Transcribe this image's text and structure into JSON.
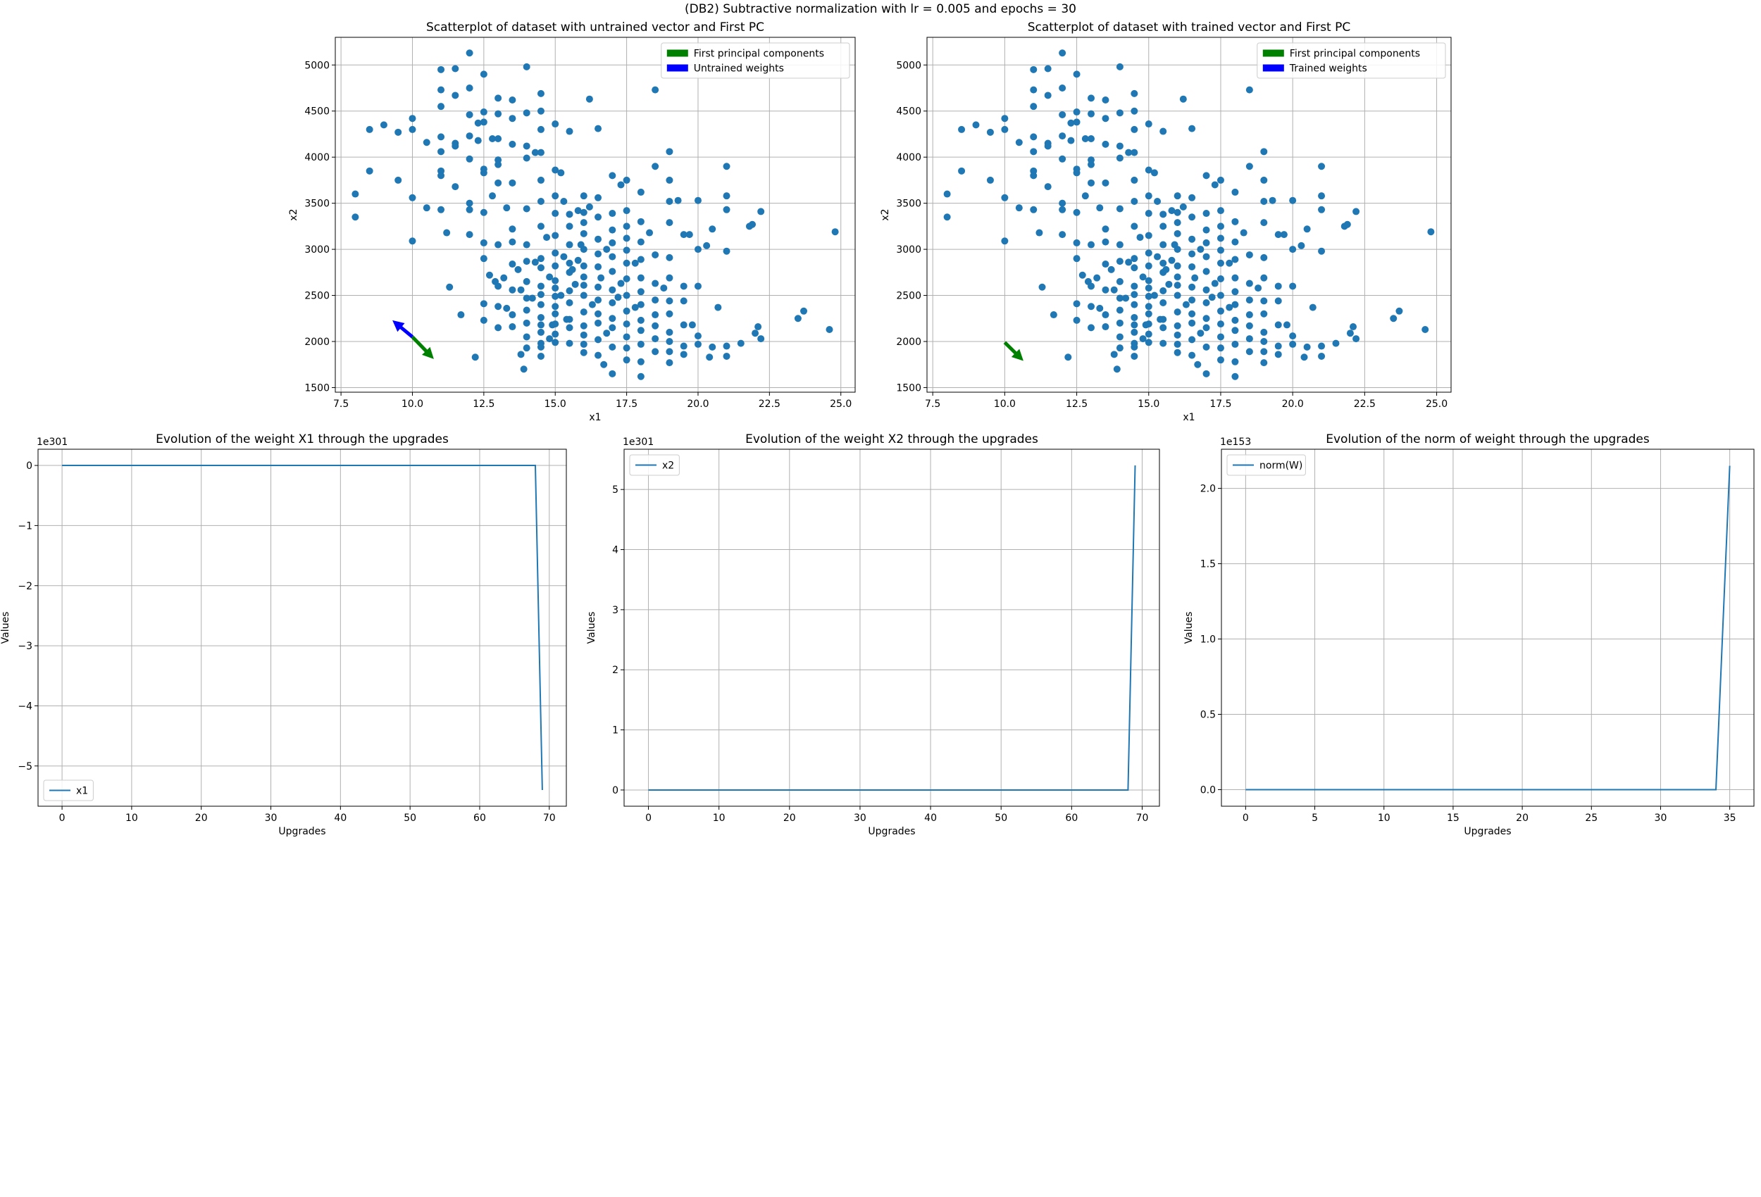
{
  "suptitle": "(DB2) Subtractive normalization with lr = 0.005 and epochs = 30",
  "colors": {
    "points": "#1f77b4",
    "line": "#1f77b4",
    "pc_arrow": "#008000",
    "weight_arrow": "#0000ff",
    "grid": "#b0b0b0"
  },
  "scatter_points": [
    [
      8.0,
      3350
    ],
    [
      8.0,
      3600
    ],
    [
      8.5,
      3850
    ],
    [
      8.5,
      4300
    ],
    [
      9.0,
      4350
    ],
    [
      9.5,
      3750
    ],
    [
      9.5,
      4270
    ],
    [
      10.0,
      3560
    ],
    [
      10.0,
      3090
    ],
    [
      10.0,
      4420
    ],
    [
      10.0,
      4300
    ],
    [
      10.5,
      3450
    ],
    [
      10.5,
      4160
    ],
    [
      11.0,
      4220
    ],
    [
      11.0,
      4060
    ],
    [
      11.0,
      3850
    ],
    [
      11.0,
      3800
    ],
    [
      11.0,
      3430
    ],
    [
      11.0,
      4730
    ],
    [
      11.0,
      4950
    ],
    [
      11.0,
      4550
    ],
    [
      11.2,
      3180
    ],
    [
      11.3,
      2590
    ],
    [
      11.5,
      4960
    ],
    [
      11.5,
      4670
    ],
    [
      11.5,
      4150
    ],
    [
      11.5,
      4120
    ],
    [
      11.5,
      3680
    ],
    [
      11.7,
      2290
    ],
    [
      12.0,
      5130
    ],
    [
      12.0,
      4750
    ],
    [
      12.0,
      4460
    ],
    [
      12.0,
      4230
    ],
    [
      12.0,
      3980
    ],
    [
      12.0,
      3500
    ],
    [
      12.0,
      3430
    ],
    [
      12.0,
      3160
    ],
    [
      12.2,
      1830
    ],
    [
      12.3,
      4370
    ],
    [
      12.3,
      4180
    ],
    [
      12.5,
      4900
    ],
    [
      12.5,
      4490
    ],
    [
      12.5,
      4380
    ],
    [
      12.5,
      3870
    ],
    [
      12.5,
      3830
    ],
    [
      12.5,
      3400
    ],
    [
      12.5,
      3070
    ],
    [
      12.5,
      2900
    ],
    [
      12.5,
      2410
    ],
    [
      12.5,
      2230
    ],
    [
      12.7,
      2720
    ],
    [
      12.8,
      4200
    ],
    [
      12.8,
      3580
    ],
    [
      12.9,
      2650
    ],
    [
      13.0,
      4640
    ],
    [
      13.0,
      4470
    ],
    [
      13.0,
      4200
    ],
    [
      13.0,
      3970
    ],
    [
      13.0,
      3920
    ],
    [
      13.0,
      3720
    ],
    [
      13.0,
      3050
    ],
    [
      13.0,
      2600
    ],
    [
      13.0,
      2380
    ],
    [
      13.0,
      2150
    ],
    [
      13.2,
      2690
    ],
    [
      13.3,
      3450
    ],
    [
      13.3,
      2360
    ],
    [
      13.5,
      4620
    ],
    [
      13.5,
      4420
    ],
    [
      13.5,
      4140
    ],
    [
      13.5,
      3720
    ],
    [
      13.5,
      3220
    ],
    [
      13.5,
      3080
    ],
    [
      13.5,
      2840
    ],
    [
      13.5,
      2560
    ],
    [
      13.5,
      2290
    ],
    [
      13.5,
      2160
    ],
    [
      13.7,
      2780
    ],
    [
      13.8,
      1860
    ],
    [
      13.9,
      1700
    ],
    [
      14.0,
      4980
    ],
    [
      14.0,
      4480
    ],
    [
      14.0,
      4120
    ],
    [
      14.0,
      3990
    ],
    [
      14.0,
      3440
    ],
    [
      14.0,
      3050
    ],
    [
      14.0,
      2870
    ],
    [
      14.0,
      2650
    ],
    [
      14.0,
      2470
    ],
    [
      14.0,
      2340
    ],
    [
      14.0,
      2200
    ],
    [
      14.0,
      2050
    ],
    [
      14.0,
      1930
    ],
    [
      14.3,
      4050
    ],
    [
      14.5,
      4690
    ],
    [
      14.5,
      4500
    ],
    [
      14.5,
      4300
    ],
    [
      14.5,
      4050
    ],
    [
      14.5,
      3750
    ],
    [
      14.5,
      3520
    ],
    [
      14.5,
      3250
    ],
    [
      14.5,
      2900
    ],
    [
      14.5,
      2800
    ],
    [
      14.5,
      2600
    ],
    [
      14.5,
      2510
    ],
    [
      14.5,
      2400
    ],
    [
      14.5,
      2260
    ],
    [
      14.5,
      2180
    ],
    [
      14.5,
      2100
    ],
    [
      14.5,
      1980
    ],
    [
      14.5,
      1940
    ],
    [
      14.5,
      1840
    ],
    [
      14.7,
      3130
    ],
    [
      14.8,
      2700
    ],
    [
      14.9,
      2180
    ],
    [
      15.0,
      4360
    ],
    [
      15.0,
      3860
    ],
    [
      15.0,
      3580
    ],
    [
      15.0,
      3390
    ],
    [
      15.0,
      3150
    ],
    [
      15.0,
      2960
    ],
    [
      15.0,
      2820
    ],
    [
      15.0,
      2660
    ],
    [
      15.0,
      2580
    ],
    [
      15.0,
      2490
    ],
    [
      15.0,
      2380
    ],
    [
      15.0,
      2300
    ],
    [
      15.0,
      2190
    ],
    [
      15.0,
      2080
    ],
    [
      15.0,
      1990
    ],
    [
      15.2,
      3830
    ],
    [
      15.3,
      3520
    ],
    [
      15.3,
      2920
    ],
    [
      15.4,
      2240
    ],
    [
      15.5,
      4280
    ],
    [
      15.5,
      3380
    ],
    [
      15.5,
      3250
    ],
    [
      15.5,
      3050
    ],
    [
      15.5,
      2850
    ],
    [
      15.5,
      2750
    ],
    [
      15.5,
      2550
    ],
    [
      15.5,
      2420
    ],
    [
      15.5,
      2240
    ],
    [
      15.5,
      2150
    ],
    [
      15.5,
      1980
    ],
    [
      15.6,
      2780
    ],
    [
      15.8,
      3420
    ],
    [
      15.8,
      2880
    ],
    [
      16.0,
      3580
    ],
    [
      16.0,
      3400
    ],
    [
      16.0,
      3290
    ],
    [
      16.0,
      3170
    ],
    [
      16.0,
      3000
    ],
    [
      16.0,
      2820
    ],
    [
      16.0,
      2700
    ],
    [
      16.0,
      2610
    ],
    [
      16.0,
      2500
    ],
    [
      16.0,
      2320
    ],
    [
      16.0,
      2170
    ],
    [
      16.0,
      2070
    ],
    [
      16.0,
      1970
    ],
    [
      16.0,
      1880
    ],
    [
      16.2,
      4630
    ],
    [
      16.2,
      3460
    ],
    [
      16.5,
      4310
    ],
    [
      16.5,
      3560
    ],
    [
      16.5,
      3350
    ],
    [
      16.5,
      3110
    ],
    [
      16.5,
      2950
    ],
    [
      16.5,
      2810
    ],
    [
      16.5,
      2590
    ],
    [
      16.5,
      2450
    ],
    [
      16.5,
      2300
    ],
    [
      16.5,
      2200
    ],
    [
      16.5,
      2020
    ],
    [
      16.5,
      1850
    ],
    [
      16.7,
      1750
    ],
    [
      16.8,
      3000
    ],
    [
      17.0,
      3800
    ],
    [
      17.0,
      3390
    ],
    [
      17.0,
      3210
    ],
    [
      17.0,
      3070
    ],
    [
      17.0,
      2920
    ],
    [
      17.0,
      2760
    ],
    [
      17.0,
      2560
    ],
    [
      17.0,
      2420
    ],
    [
      17.0,
      2250
    ],
    [
      17.0,
      2150
    ],
    [
      17.0,
      1940
    ],
    [
      17.0,
      1650
    ],
    [
      17.3,
      3700
    ],
    [
      17.3,
      2630
    ],
    [
      17.5,
      3750
    ],
    [
      17.5,
      3420
    ],
    [
      17.5,
      3250
    ],
    [
      17.5,
      3120
    ],
    [
      17.5,
      2990
    ],
    [
      17.5,
      2850
    ],
    [
      17.5,
      2680
    ],
    [
      17.5,
      2500
    ],
    [
      17.5,
      2330
    ],
    [
      17.5,
      2190
    ],
    [
      17.5,
      2050
    ],
    [
      17.5,
      1930
    ],
    [
      17.5,
      1800
    ],
    [
      17.8,
      2850
    ],
    [
      18.0,
      3620
    ],
    [
      18.0,
      3300
    ],
    [
      18.0,
      3080
    ],
    [
      18.0,
      2890
    ],
    [
      18.0,
      2690
    ],
    [
      18.0,
      2540
    ],
    [
      18.0,
      2400
    ],
    [
      18.0,
      2230
    ],
    [
      18.0,
      2120
    ],
    [
      18.0,
      1970
    ],
    [
      18.0,
      1780
    ],
    [
      18.0,
      1620
    ],
    [
      18.3,
      3180
    ],
    [
      18.5,
      4730
    ],
    [
      18.5,
      3900
    ],
    [
      18.5,
      2940
    ],
    [
      18.5,
      2630
    ],
    [
      18.5,
      2450
    ],
    [
      18.5,
      2290
    ],
    [
      18.5,
      2170
    ],
    [
      18.5,
      2030
    ],
    [
      18.5,
      1890
    ],
    [
      19.0,
      4060
    ],
    [
      19.0,
      3750
    ],
    [
      19.0,
      3520
    ],
    [
      19.0,
      3290
    ],
    [
      19.0,
      2910
    ],
    [
      19.0,
      2690
    ],
    [
      19.0,
      2440
    ],
    [
      19.0,
      2300
    ],
    [
      19.0,
      2100
    ],
    [
      19.0,
      2000
    ],
    [
      19.0,
      1890
    ],
    [
      19.0,
      1770
    ],
    [
      19.3,
      3530
    ],
    [
      19.5,
      3160
    ],
    [
      19.5,
      2600
    ],
    [
      19.5,
      2440
    ],
    [
      19.5,
      2180
    ],
    [
      19.5,
      1950
    ],
    [
      19.5,
      1860
    ],
    [
      19.7,
      3160
    ],
    [
      19.8,
      2180
    ],
    [
      20.0,
      3530
    ],
    [
      20.0,
      3000
    ],
    [
      20.0,
      2600
    ],
    [
      20.0,
      2060
    ],
    [
      20.0,
      1970
    ],
    [
      20.3,
      3040
    ],
    [
      20.4,
      1830
    ],
    [
      20.5,
      3220
    ],
    [
      20.5,
      1940
    ],
    [
      20.7,
      2370
    ],
    [
      21.0,
      3900
    ],
    [
      21.0,
      3580
    ],
    [
      21.0,
      3430
    ],
    [
      21.0,
      2980
    ],
    [
      21.0,
      1950
    ],
    [
      21.0,
      1840
    ],
    [
      21.5,
      1980
    ],
    [
      21.8,
      3250
    ],
    [
      21.9,
      3270
    ],
    [
      22.0,
      2090
    ],
    [
      22.1,
      2160
    ],
    [
      22.2,
      3410
    ],
    [
      22.2,
      2030
    ],
    [
      23.5,
      2250
    ],
    [
      23.7,
      2330
    ],
    [
      24.6,
      2130
    ],
    [
      24.8,
      3190
    ],
    [
      14.2,
      2470
    ],
    [
      15.7,
      2620
    ],
    [
      16.3,
      2400
    ],
    [
      14.8,
      2030
    ],
    [
      16.8,
      2090
    ],
    [
      17.8,
      2370
    ],
    [
      18.8,
      2580
    ],
    [
      13.8,
      2560
    ],
    [
      15.2,
      2500
    ],
    [
      16.6,
      2690
    ],
    [
      17.2,
      2480
    ],
    [
      14.3,
      2860
    ],
    [
      15.9,
      3050
    ]
  ],
  "charts": [
    {
      "title": "Scatterplot of dataset with untrained vector and First PC",
      "xlabel": "x1",
      "ylabel": "x2",
      "xlim": [
        7.3,
        25.5
      ],
      "ylim": [
        1450,
        5300
      ],
      "xticks": [
        7.5,
        10.0,
        12.5,
        15.0,
        17.5,
        20.0,
        22.5,
        25.0
      ],
      "xtick_labels": [
        "7.5",
        "10.0",
        "12.5",
        "15.0",
        "17.5",
        "20.0",
        "22.5",
        "25.0"
      ],
      "yticks": [
        1500,
        2000,
        2500,
        3000,
        3500,
        4000,
        4500,
        5000
      ],
      "ytick_labels": [
        "1500",
        "2000",
        "2500",
        "3000",
        "3500",
        "4000",
        "4500",
        "5000"
      ],
      "legend": [
        {
          "label": "First principal components",
          "color": "#008000"
        },
        {
          "label": "Untrained weights",
          "color": "#0000ff"
        }
      ],
      "legend_position": "top-right",
      "arrows": [
        {
          "name": "untrained-weights-arrow",
          "color": "#0000ff",
          "from": [
            10.0,
            2050
          ],
          "to": [
            9.3,
            2230
          ]
        },
        {
          "name": "first-pc-arrow",
          "color": "#008000",
          "from": [
            10.0,
            2050
          ],
          "to": [
            10.75,
            1810
          ]
        }
      ]
    },
    {
      "title": "Scatterplot of dataset with trained vector and First PC",
      "xlabel": "x1",
      "ylabel": "x2",
      "xlim": [
        7.3,
        25.5
      ],
      "ylim": [
        1450,
        5300
      ],
      "xticks": [
        7.5,
        10.0,
        12.5,
        15.0,
        17.5,
        20.0,
        22.5,
        25.0
      ],
      "xtick_labels": [
        "7.5",
        "10.0",
        "12.5",
        "15.0",
        "17.5",
        "20.0",
        "22.5",
        "25.0"
      ],
      "yticks": [
        1500,
        2000,
        2500,
        3000,
        3500,
        4000,
        4500,
        5000
      ],
      "ytick_labels": [
        "1500",
        "2000",
        "2500",
        "3000",
        "3500",
        "4000",
        "4500",
        "5000"
      ],
      "legend": [
        {
          "label": "First principal components",
          "color": "#008000"
        },
        {
          "label": "Trained weights",
          "color": "#0000ff"
        }
      ],
      "legend_position": "top-right",
      "arrows": [
        {
          "name": "first-pc-arrow",
          "color": "#008000",
          "from": [
            10.0,
            1990
          ],
          "to": [
            10.65,
            1790
          ]
        }
      ]
    },
    {
      "title": "Evolution of the weight X1 through the upgrades",
      "xlabel": "Upgrades",
      "ylabel": "Values",
      "offset_text": "1e301",
      "xlim": [
        -3.45,
        72.45
      ],
      "ylim": [
        -5.67,
        0.27
      ],
      "xticks": [
        0,
        10,
        20,
        30,
        40,
        50,
        60,
        70
      ],
      "xtick_labels": [
        "0",
        "10",
        "20",
        "30",
        "40",
        "50",
        "60",
        "70"
      ],
      "yticks": [
        0,
        -1,
        -2,
        -3,
        -4,
        -5
      ],
      "ytick_labels": [
        "0",
        "−1",
        "−2",
        "−3",
        "−4",
        "−5"
      ],
      "legend": [
        {
          "label": "x1",
          "color": "#1f77b4"
        }
      ],
      "legend_position": "bottom-left",
      "series": [
        {
          "name": "x1",
          "x": [
            0,
            68,
            69
          ],
          "y": [
            0,
            0,
            -5.4
          ]
        }
      ]
    },
    {
      "title": "Evolution of the weight X2 through the upgrades",
      "xlabel": "Upgrades",
      "ylabel": "Values",
      "offset_text": "1e301",
      "xlim": [
        -3.45,
        72.45
      ],
      "ylim": [
        -0.27,
        5.67
      ],
      "xticks": [
        0,
        10,
        20,
        30,
        40,
        50,
        60,
        70
      ],
      "xtick_labels": [
        "0",
        "10",
        "20",
        "30",
        "40",
        "50",
        "60",
        "70"
      ],
      "yticks": [
        0,
        1,
        2,
        3,
        4,
        5
      ],
      "ytick_labels": [
        "0",
        "1",
        "2",
        "3",
        "4",
        "5"
      ],
      "legend": [
        {
          "label": "x2",
          "color": "#1f77b4"
        }
      ],
      "legend_position": "top-left",
      "series": [
        {
          "name": "x2",
          "x": [
            0,
            68,
            69
          ],
          "y": [
            0,
            0,
            5.4
          ]
        }
      ]
    },
    {
      "title": "Evolution of the norm of weight through the upgrades",
      "xlabel": "Upgrades",
      "ylabel": "Values",
      "offset_text": "1e153",
      "xlim": [
        -1.75,
        36.75
      ],
      "ylim": [
        -0.11,
        2.26
      ],
      "xticks": [
        0,
        5,
        10,
        15,
        20,
        25,
        30,
        35
      ],
      "xtick_labels": [
        "0",
        "5",
        "10",
        "15",
        "20",
        "25",
        "30",
        "35"
      ],
      "yticks": [
        0.0,
        0.5,
        1.0,
        1.5,
        2.0
      ],
      "ytick_labels": [
        "0.0",
        "0.5",
        "1.0",
        "1.5",
        "2.0"
      ],
      "legend": [
        {
          "label": "norm(W)",
          "color": "#1f77b4"
        }
      ],
      "legend_position": "top-left",
      "series": [
        {
          "name": "norm(W)",
          "x": [
            0,
            34,
            35
          ],
          "y": [
            0,
            0,
            2.15
          ]
        }
      ]
    }
  ],
  "chart_data": [
    {
      "type": "scatter",
      "title": "Scatterplot of dataset with untrained vector and First PC",
      "xlabel": "x1",
      "ylabel": "x2",
      "xlim": [
        7.3,
        25.5
      ],
      "ylim": [
        1450,
        5300
      ],
      "legend": [
        "First principal components",
        "Untrained weights"
      ],
      "grid": true
    },
    {
      "type": "scatter",
      "title": "Scatterplot of dataset with trained vector and First PC",
      "xlabel": "x1",
      "ylabel": "x2",
      "xlim": [
        7.3,
        25.5
      ],
      "ylim": [
        1450,
        5300
      ],
      "legend": [
        "First principal components",
        "Trained weights"
      ],
      "grid": true
    },
    {
      "type": "line",
      "title": "Evolution of the weight X1 through the upgrades",
      "xlabel": "Upgrades",
      "ylabel": "Values",
      "scale": "1e301",
      "series": [
        {
          "name": "x1",
          "x": [
            0,
            68,
            69
          ],
          "y": [
            0,
            0,
            -5.4
          ]
        }
      ],
      "grid": true
    },
    {
      "type": "line",
      "title": "Evolution of the weight X2 through the upgrades",
      "xlabel": "Upgrades",
      "ylabel": "Values",
      "scale": "1e301",
      "series": [
        {
          "name": "x2",
          "x": [
            0,
            68,
            69
          ],
          "y": [
            0,
            0,
            5.4
          ]
        }
      ],
      "grid": true
    },
    {
      "type": "line",
      "title": "Evolution of the norm of weight through the upgrades",
      "xlabel": "Upgrades",
      "ylabel": "Values",
      "scale": "1e153",
      "series": [
        {
          "name": "norm(W)",
          "x": [
            0,
            34,
            35
          ],
          "y": [
            0,
            0,
            2.15
          ]
        }
      ],
      "grid": true
    }
  ]
}
